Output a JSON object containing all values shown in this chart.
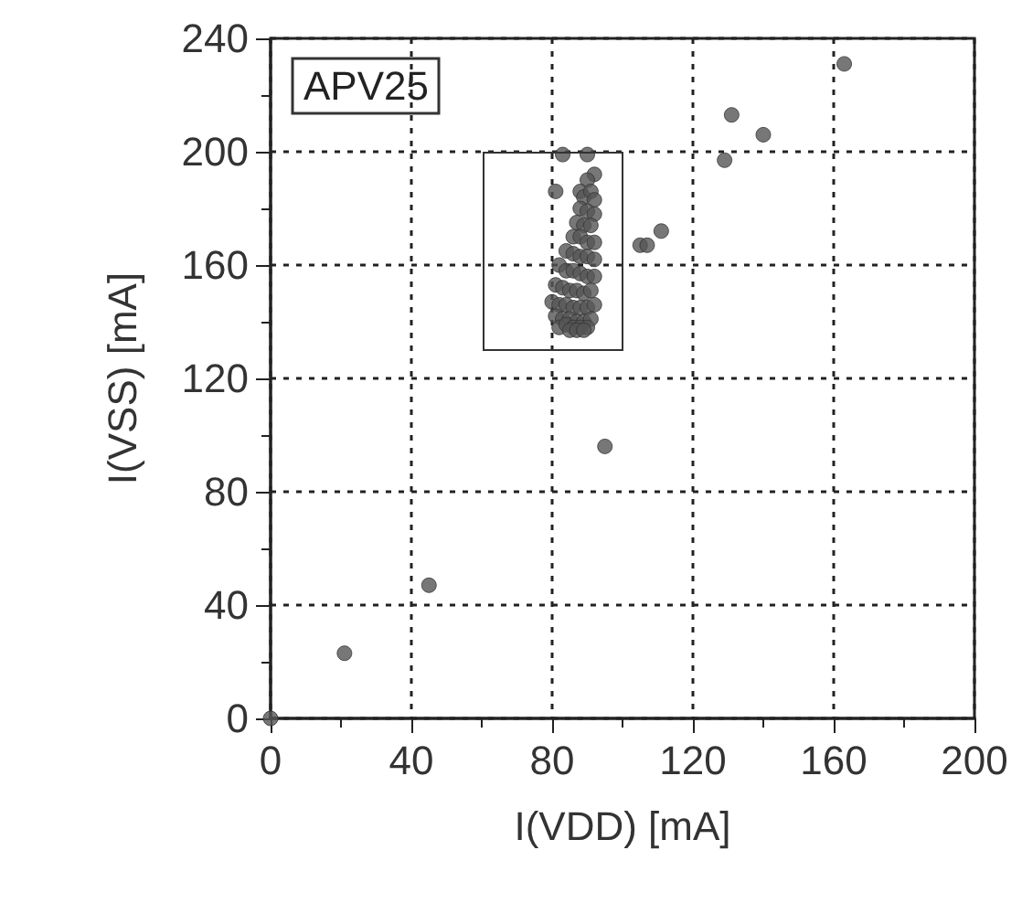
{
  "chart_data": {
    "type": "scatter",
    "title": "APV25",
    "xlabel": "I(VDD) [mA]",
    "ylabel": "I(VSS) [mA]",
    "xlim": [
      0,
      200
    ],
    "xticks": [
      0,
      40,
      80,
      120,
      160,
      200
    ],
    "ylim": [
      0,
      240
    ],
    "yticks": [
      0,
      40,
      80,
      120,
      160,
      200,
      240
    ],
    "grid": true,
    "marker": "circle",
    "series": [
      {
        "color": "#555555",
        "x": [
          0,
          21,
          45,
          95,
          131,
          140,
          129,
          163,
          83,
          90,
          81,
          105,
          107,
          111,
          92,
          90,
          88,
          89,
          91,
          92,
          88,
          90,
          92,
          87,
          89,
          91,
          86,
          88,
          90,
          92,
          84,
          86,
          88,
          90,
          92,
          82,
          84,
          86,
          88,
          90,
          92,
          81,
          83,
          85,
          87,
          89,
          91,
          80,
          82,
          84,
          86,
          88,
          90,
          92,
          81,
          83,
          85,
          87,
          89,
          91,
          82,
          84,
          86,
          88,
          90,
          85,
          87,
          89
        ],
        "values": [
          0,
          23,
          47,
          96,
          213,
          206,
          197,
          231,
          199,
          199,
          186,
          167,
          167,
          172,
          192,
          190,
          186,
          184,
          186,
          183,
          180,
          179,
          178,
          175,
          174,
          174,
          170,
          170,
          168,
          168,
          165,
          164,
          163,
          163,
          162,
          160,
          158,
          158,
          157,
          156,
          156,
          153,
          152,
          151,
          151,
          150,
          151,
          147,
          146,
          146,
          145,
          145,
          145,
          146,
          142,
          141,
          141,
          140,
          140,
          141,
          138,
          139,
          138,
          138,
          138,
          137,
          137,
          137
        ]
      }
    ]
  }
}
